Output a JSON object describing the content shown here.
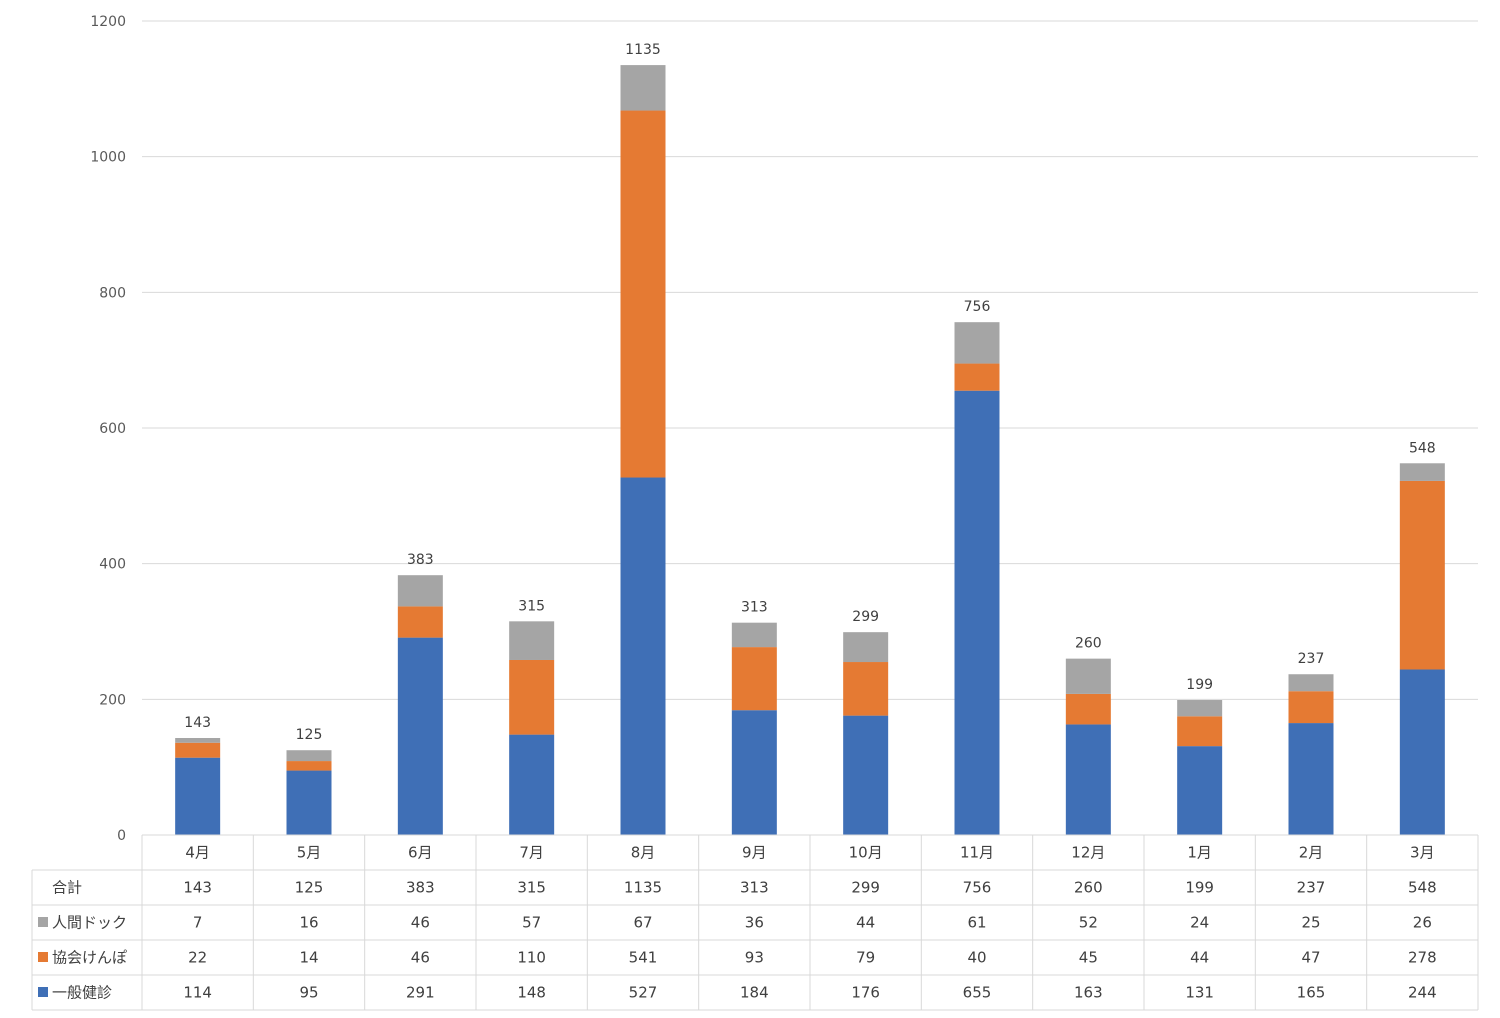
{
  "chart_data": {
    "type": "bar",
    "stacked": true,
    "title": "",
    "xlabel": "",
    "ylabel": "",
    "ylim": [
      0,
      1200
    ],
    "yticks": [
      0,
      200,
      400,
      600,
      800,
      1000,
      1200
    ],
    "grid": true,
    "legend": "data-table-left",
    "categories": [
      "4月",
      "5月",
      "6月",
      "7月",
      "8月",
      "9月",
      "10月",
      "11月",
      "12月",
      "1月",
      "2月",
      "3月"
    ],
    "series": [
      {
        "name": "一般健診",
        "color": "#3F6FB6",
        "values": [
          114,
          95,
          291,
          148,
          527,
          184,
          176,
          655,
          163,
          131,
          165,
          244
        ]
      },
      {
        "name": "協会けんぽ",
        "color": "#E57A33",
        "values": [
          22,
          14,
          46,
          110,
          541,
          93,
          79,
          40,
          45,
          44,
          47,
          278
        ]
      },
      {
        "name": "人間ドック",
        "color": "#A5A5A5",
        "values": [
          7,
          16,
          46,
          57,
          67,
          36,
          44,
          61,
          52,
          24,
          25,
          26
        ]
      }
    ],
    "totals_label": "合計",
    "totals": [
      143,
      125,
      383,
      315,
      1135,
      313,
      299,
      756,
      260,
      199,
      237,
      548
    ]
  }
}
